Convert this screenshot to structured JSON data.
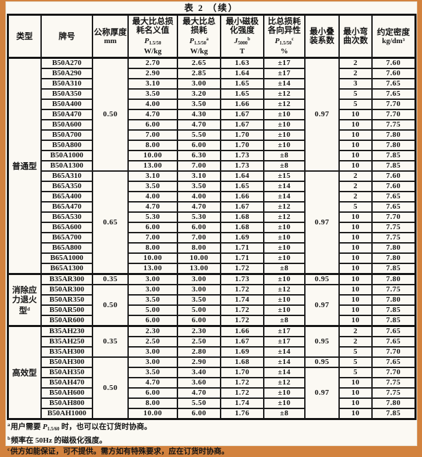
{
  "page": {
    "title": "表 2  （续）"
  },
  "table": {
    "columns": {
      "type": "类型",
      "grade": "牌号",
      "thickness": "公称厚度",
      "thickness_unit": "mm",
      "loss_nominal": "最大比总损耗名义值",
      "loss_nominal_formula": {
        "base": "P",
        "sub": "1.5/50",
        "sup": ""
      },
      "loss_nominal_unit": "W/kg",
      "loss_max": "最大比总损耗",
      "loss_max_formula": {
        "base": "P",
        "sub": "1.5/50",
        "sup": "a"
      },
      "loss_max_unit": "W/kg",
      "polarization": "最小磁极化强度",
      "polarization_formula": {
        "base": "J",
        "sub": "5000",
        "sup": "b"
      },
      "polarization_unit": "T",
      "anisotropy": "比总损耗各向异性",
      "anisotropy_formula": {
        "base": "P",
        "sub": "1.5/50",
        "sup": "c"
      },
      "anisotropy_unit": "%",
      "stacking": "最小叠装系数",
      "bend": "最小弯曲次数",
      "density": "约定密度",
      "density_unit": "kg/dm³"
    },
    "groups": [
      {
        "type_label": "普通型",
        "type_sup": "",
        "rows": [
          {
            "grade": "B50A270",
            "thickness": "0.50",
            "thickness_span": 11,
            "nominal": "2.70",
            "max": "2.65",
            "j": "1.63",
            "aniso": "±17",
            "stacking": "0.97",
            "stacking_span": 11,
            "bend": "2",
            "density": "7.60"
          },
          {
            "grade": "B50A290",
            "nominal": "2.90",
            "max": "2.85",
            "j": "1.64",
            "aniso": "±17",
            "bend": "2",
            "density": "7.60"
          },
          {
            "grade": "B50A310",
            "nominal": "3.10",
            "max": "3.00",
            "j": "1.65",
            "aniso": "±14",
            "bend": "3",
            "density": "7.65"
          },
          {
            "grade": "B50A350",
            "nominal": "3.50",
            "max": "3.20",
            "j": "1.65",
            "aniso": "±12",
            "bend": "5",
            "density": "7.65"
          },
          {
            "grade": "B50A400",
            "nominal": "4.00",
            "max": "3.50",
            "j": "1.66",
            "aniso": "±12",
            "bend": "5",
            "density": "7.70"
          },
          {
            "grade": "B50A470",
            "nominal": "4.70",
            "max": "4.30",
            "j": "1.67",
            "aniso": "±10",
            "bend": "10",
            "density": "7.70"
          },
          {
            "grade": "B50A600",
            "nominal": "6.00",
            "max": "4.70",
            "j": "1.67",
            "aniso": "±10",
            "bend": "10",
            "density": "7.75"
          },
          {
            "grade": "B50A700",
            "nominal": "7.00",
            "max": "5.50",
            "j": "1.70",
            "aniso": "±10",
            "bend": "10",
            "density": "7.80"
          },
          {
            "grade": "B50A800",
            "nominal": "8.00",
            "max": "6.00",
            "j": "1.70",
            "aniso": "±10",
            "bend": "10",
            "density": "7.80"
          },
          {
            "grade": "B50A1000",
            "nominal": "10.00",
            "max": "6.30",
            "j": "1.73",
            "aniso": "±8",
            "bend": "10",
            "density": "7.85"
          },
          {
            "grade": "B50A1300",
            "nominal": "13.00",
            "max": "7.00",
            "j": "1.73",
            "aniso": "±8",
            "bend": "10",
            "density": "7.85"
          },
          {
            "grade": "B65A310",
            "thickness": "0.65",
            "thickness_span": 10,
            "nominal": "3.10",
            "max": "3.10",
            "j": "1.64",
            "aniso": "±15",
            "stacking": "0.97",
            "stacking_span": 10,
            "bend": "2",
            "density": "7.60"
          },
          {
            "grade": "B65A350",
            "nominal": "3.50",
            "max": "3.50",
            "j": "1.65",
            "aniso": "±14",
            "bend": "2",
            "density": "7.60"
          },
          {
            "grade": "B65A400",
            "nominal": "4.00",
            "max": "4.00",
            "j": "1.66",
            "aniso": "±14",
            "bend": "2",
            "density": "7.65"
          },
          {
            "grade": "B65A470",
            "nominal": "4.70",
            "max": "4.70",
            "j": "1.67",
            "aniso": "±12",
            "bend": "5",
            "density": "7.65"
          },
          {
            "grade": "B65A530",
            "nominal": "5.30",
            "max": "5.30",
            "j": "1.68",
            "aniso": "±12",
            "bend": "10",
            "density": "7.70"
          },
          {
            "grade": "B65A600",
            "nominal": "6.00",
            "max": "6.00",
            "j": "1.68",
            "aniso": "±10",
            "bend": "10",
            "density": "7.75"
          },
          {
            "grade": "B65A700",
            "nominal": "7.00",
            "max": "7.00",
            "j": "1.69",
            "aniso": "±10",
            "bend": "10",
            "density": "7.75"
          },
          {
            "grade": "B65A800",
            "nominal": "8.00",
            "max": "8.00",
            "j": "1.71",
            "aniso": "±10",
            "bend": "10",
            "density": "7.80"
          },
          {
            "grade": "B65A1000",
            "nominal": "10.00",
            "max": "10.00",
            "j": "1.71",
            "aniso": "±10",
            "bend": "10",
            "density": "7.80"
          },
          {
            "grade": "B65A1300",
            "nominal": "13.00",
            "max": "13.00",
            "j": "1.72",
            "aniso": "±8",
            "bend": "10",
            "density": "7.85"
          }
        ]
      },
      {
        "type_label": "消除应力退火型",
        "type_sup": "d",
        "rows": [
          {
            "grade": "B35AR300",
            "thickness": "0.35",
            "thickness_span": 1,
            "nominal": "3.00",
            "max": "3.00",
            "j": "1.73",
            "aniso": "±10",
            "stacking": "0.95",
            "stacking_span": 1,
            "bend": "10",
            "density": "7.80"
          },
          {
            "grade": "B50AR300",
            "thickness": "0.50",
            "thickness_span": 4,
            "nominal": "3.00",
            "max": "3.00",
            "j": "1.72",
            "aniso": "±12",
            "stacking": "0.97",
            "stacking_span": 4,
            "bend": "10",
            "density": "7.75"
          },
          {
            "grade": "B50AR350",
            "nominal": "3.50",
            "max": "3.50",
            "j": "1.74",
            "aniso": "±10",
            "bend": "10",
            "density": "7.80"
          },
          {
            "grade": "B50AR500",
            "nominal": "5.00",
            "max": "5.00",
            "j": "1.72",
            "aniso": "±10",
            "bend": "10",
            "density": "7.85"
          },
          {
            "grade": "B50AR600",
            "nominal": "6.00",
            "max": "6.00",
            "j": "1.72",
            "aniso": "±8",
            "bend": "10",
            "density": "7.85"
          }
        ]
      },
      {
        "type_label": "高效型",
        "type_sup": "",
        "rows": [
          {
            "grade": "B35AH230",
            "thickness": "0.35",
            "thickness_span": 3,
            "nominal": "2.30",
            "max": "2.30",
            "j": "1.66",
            "aniso": "±17",
            "stacking": "0.95",
            "stacking_span": 3,
            "bend": "2",
            "density": "7.65"
          },
          {
            "grade": "B35AH250",
            "nominal": "2.50",
            "max": "2.50",
            "j": "1.67",
            "aniso": "±17",
            "bend": "2",
            "density": "7.65"
          },
          {
            "grade": "B35AH300",
            "nominal": "3.00",
            "max": "2.80",
            "j": "1.69",
            "aniso": "±14",
            "bend": "5",
            "density": "7.70"
          },
          {
            "grade": "B50AH300",
            "thickness": "0.50",
            "thickness_span": 6,
            "nominal": "3.00",
            "max": "2.90",
            "j": "1.68",
            "aniso": "±14",
            "stacking": "0.95",
            "stacking_span": 1,
            "bend": "5",
            "density": "7.65"
          },
          {
            "grade": "B50AH350",
            "nominal": "3.50",
            "max": "3.40",
            "j": "1.70",
            "aniso": "±14",
            "stacking": "0.97",
            "stacking_span": 5,
            "bend": "5",
            "density": "7.70"
          },
          {
            "grade": "B50AH470",
            "nominal": "4.70",
            "max": "3.60",
            "j": "1.72",
            "aniso": "±12",
            "bend": "10",
            "density": "7.75"
          },
          {
            "grade": "B50AH600",
            "nominal": "6.00",
            "max": "4.70",
            "j": "1.72",
            "aniso": "±10",
            "bend": "10",
            "density": "7.75"
          },
          {
            "grade": "B50AH800",
            "nominal": "8.00",
            "max": "5.50",
            "j": "1.74",
            "aniso": "±10",
            "bend": "10",
            "density": "7.80"
          },
          {
            "grade": "B50AH1000",
            "nominal": "10.00",
            "max": "6.00",
            "j": "1.76",
            "aniso": "±8",
            "bend": "10",
            "density": "7.85"
          }
        ]
      }
    ]
  },
  "footnotes": {
    "a": {
      "sup": "a",
      "pre": "用户需要 ",
      "formula": {
        "base": "P",
        "sub": "1.5/60"
      },
      "post": " 时，也可以在订货时协商。"
    },
    "b": {
      "sup": "b",
      "text": "频率在 50Hz 的磁极化强度。"
    },
    "c": {
      "sup": "c",
      "text": "供方如能保证，可不提供。需方如有特殊要求，应在订货时协商。"
    }
  }
}
